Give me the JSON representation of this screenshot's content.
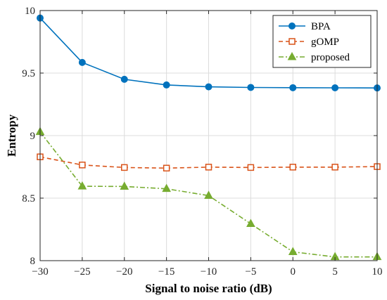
{
  "chart_data": {
    "type": "line",
    "title": "",
    "xlabel": "Signal to noise ratio (dB)",
    "ylabel": "Entropy",
    "x": [
      -30,
      -25,
      -20,
      -15,
      -10,
      -5,
      0,
      5,
      10
    ],
    "xlim": [
      -30,
      10
    ],
    "ylim": [
      8,
      10
    ],
    "xticks": [
      -30,
      -25,
      -20,
      -15,
      -10,
      -5,
      0,
      5,
      10
    ],
    "yticks": [
      8,
      8.5,
      9,
      9.5,
      10
    ],
    "xtick_labels": [
      "−30",
      "−25",
      "−20",
      "−15",
      "−10",
      "−5",
      "0",
      "5",
      "10"
    ],
    "ytick_labels": [
      "8",
      "8.5",
      "9",
      "9.5",
      "10"
    ],
    "grid": true,
    "legend_position": "top-right",
    "series": [
      {
        "name": "BPA",
        "color": "#0072BD",
        "marker": "circle",
        "line": "solid",
        "values": [
          9.94,
          9.585,
          9.45,
          9.405,
          9.39,
          9.385,
          9.383,
          9.382,
          9.381
        ]
      },
      {
        "name": "gOMP",
        "color": "#D95319",
        "marker": "square",
        "line": "dashed",
        "values": [
          8.83,
          8.765,
          8.745,
          8.74,
          8.748,
          8.745,
          8.748,
          8.748,
          8.752
        ]
      },
      {
        "name": "proposed",
        "color": "#77AC30",
        "marker": "triangle",
        "line": "dashdot",
        "values": [
          9.03,
          8.595,
          8.593,
          8.575,
          8.52,
          8.295,
          8.07,
          8.03,
          8.03
        ]
      }
    ]
  }
}
